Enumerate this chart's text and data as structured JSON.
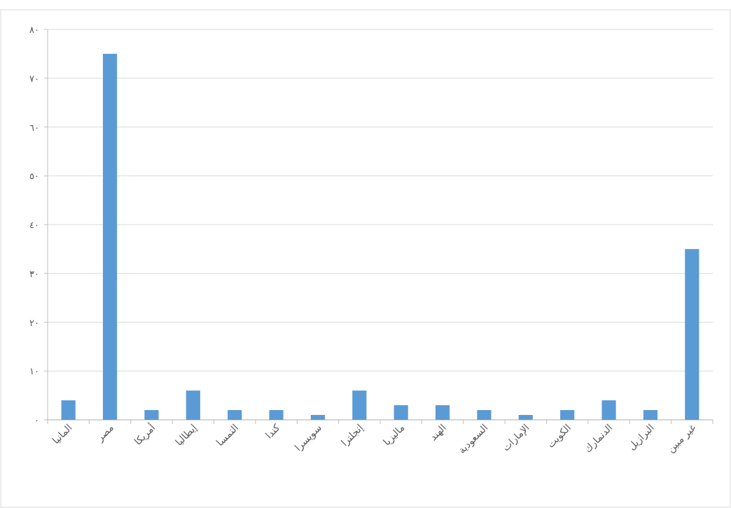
{
  "chart_data": {
    "type": "bar",
    "categories": [
      "المانيا",
      "مصر",
      "أمريكا",
      "إيطاليا",
      "النمسا",
      "كندا",
      "سويسرا",
      "إنجلترا",
      "ماليزيا",
      "الهند",
      "السعودية",
      "الإمارات",
      "الكويت",
      "الدنمارك",
      "البرازيل",
      "غير مبين"
    ],
    "values": [
      4,
      75,
      2,
      6,
      2,
      2,
      1,
      6,
      3,
      3,
      2,
      1,
      2,
      4,
      2,
      35
    ],
    "color": "#5b9bd5",
    "ylim": [
      0,
      80
    ],
    "yticks": [
      {
        "value": 0,
        "label": "٠"
      },
      {
        "value": 10,
        "label": "١٠"
      },
      {
        "value": 20,
        "label": "٢٠"
      },
      {
        "value": 30,
        "label": "٣٠"
      },
      {
        "value": 40,
        "label": "٤٠"
      },
      {
        "value": 50,
        "label": "٥٠"
      },
      {
        "value": 60,
        "label": "٦٠"
      },
      {
        "value": 70,
        "label": "٧٠"
      },
      {
        "value": 80,
        "label": "٨٠"
      }
    ],
    "grid": "y"
  }
}
